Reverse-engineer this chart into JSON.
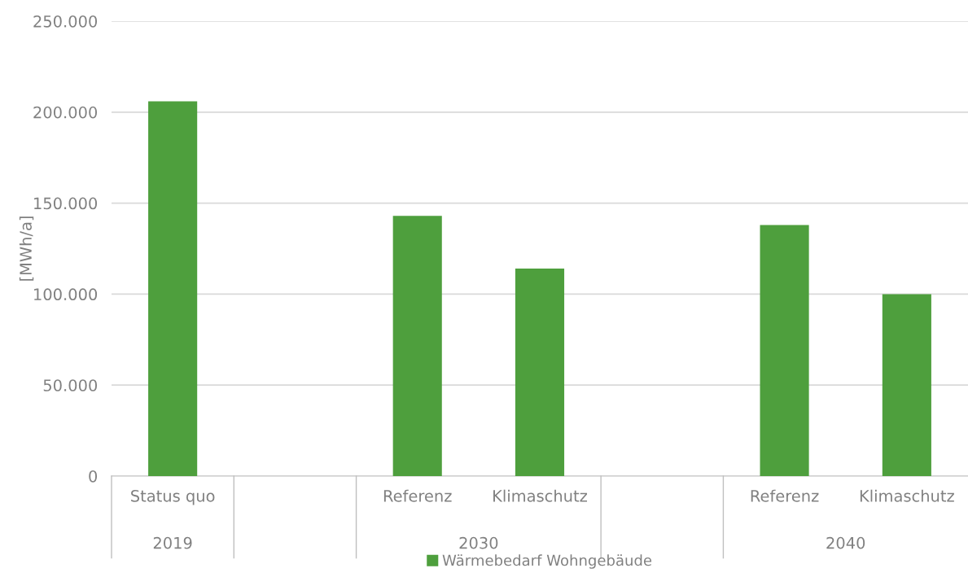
{
  "chart_data": {
    "type": "bar",
    "ylabel": "[MWh/a]",
    "categories": [
      "Status quo",
      null,
      "Referenz",
      "Klimaschutz",
      null,
      "Referenz",
      "Klimaschutz"
    ],
    "series": [
      {
        "name": "Wärmebedarf Wohngebäude",
        "color": "#4e9f3d",
        "values": [
          206000,
          null,
          143000,
          114000,
          null,
          138000,
          100000
        ]
      }
    ],
    "ylim": [
      0,
      250000
    ],
    "yticks": [
      {
        "value": 0,
        "label": "0"
      },
      {
        "value": 50000,
        "label": "50.000"
      },
      {
        "value": 100000,
        "label": "100.000"
      },
      {
        "value": 150000,
        "label": "150.000"
      },
      {
        "value": 200000,
        "label": "200.000"
      },
      {
        "value": 250000,
        "label": "250.000"
      }
    ],
    "annotations": [
      "2019",
      "2030",
      "2040"
    ],
    "grid": "y",
    "legend": "bottom"
  }
}
